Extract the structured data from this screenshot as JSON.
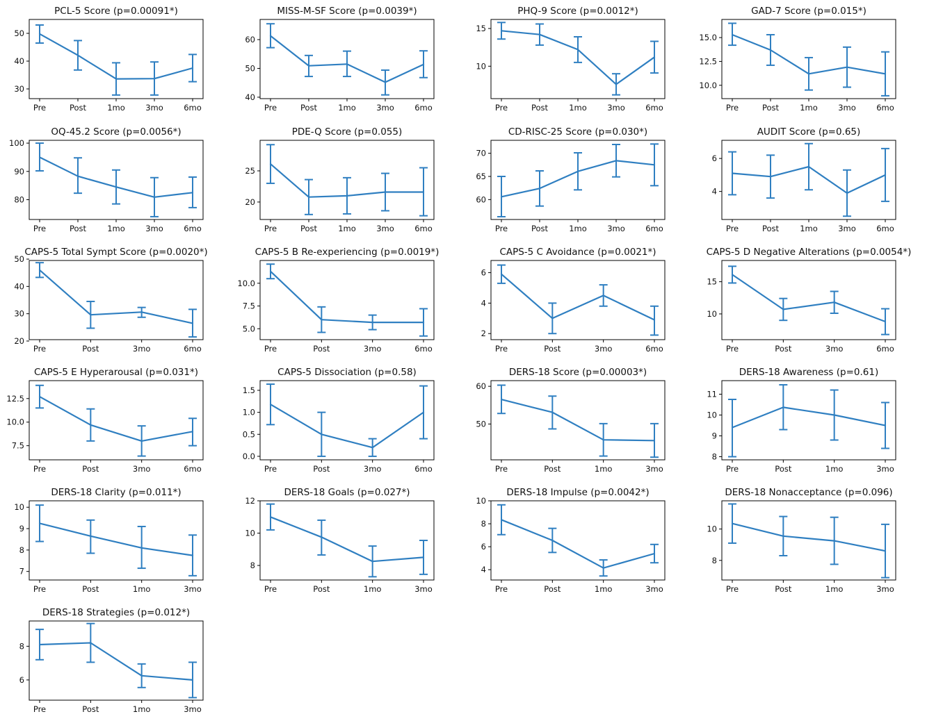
{
  "figure": {
    "line_color": "#2f7fc1",
    "axis_color": "#000000"
  },
  "chart_data": [
    {
      "type": "line",
      "title": "PCL-5 Score (p=0.00091*)",
      "x": [
        "Pre",
        "Post",
        "1mo",
        "3mo",
        "6mo"
      ],
      "series": [
        {
          "values": [
            49.8,
            42.1,
            33.6,
            33.7,
            37.5
          ],
          "err": [
            [
              46.5,
              53.0
            ],
            [
              36.8,
              47.4
            ],
            [
              27.8,
              39.4
            ],
            [
              27.8,
              39.7
            ],
            [
              32.6,
              42.4
            ]
          ]
        }
      ],
      "ylim": [
        26.5,
        55
      ],
      "yticks": [
        30,
        40,
        50
      ],
      "ytick_labels": [
        "30",
        "40",
        "50"
      ],
      "xlabel": "",
      "ylabel": ""
    },
    {
      "type": "line",
      "title": "MISS-M-SF Score (p=0.0039*)",
      "x": [
        "Pre",
        "Post",
        "1mo",
        "3mo",
        "6mo"
      ],
      "series": [
        {
          "values": [
            61.3,
            50.9,
            51.5,
            45.2,
            51.4
          ],
          "err": [
            [
              57.2,
              65.5
            ],
            [
              47.2,
              54.5
            ],
            [
              47.2,
              56.0
            ],
            [
              40.8,
              49.4
            ],
            [
              46.8,
              56.1
            ]
          ]
        }
      ],
      "ylim": [
        39.5,
        67
      ],
      "yticks": [
        40,
        50,
        60
      ],
      "ytick_labels": [
        "40",
        "50",
        "60"
      ],
      "xlabel": "",
      "ylabel": ""
    },
    {
      "type": "line",
      "title": "PHQ-9 Score (p=0.0012*)",
      "x": [
        "Pre",
        "Post",
        "1mo",
        "3mo",
        "6mo"
      ],
      "series": [
        {
          "values": [
            14.7,
            14.2,
            12.2,
            7.6,
            11.2
          ],
          "err": [
            [
              13.6,
              15.8
            ],
            [
              12.8,
              15.6
            ],
            [
              10.5,
              13.9
            ],
            [
              6.2,
              9.0
            ],
            [
              9.1,
              13.3
            ]
          ]
        }
      ],
      "ylim": [
        5.7,
        16.2
      ],
      "yticks": [
        10,
        15
      ],
      "ytick_labels": [
        "10",
        "15"
      ],
      "xlabel": "",
      "ylabel": ""
    },
    {
      "type": "line",
      "title": "GAD-7 Score (p=0.015*)",
      "x": [
        "Pre",
        "Post",
        "1mo",
        "3mo",
        "6mo"
      ],
      "series": [
        {
          "values": [
            15.3,
            13.7,
            11.2,
            11.9,
            11.2
          ],
          "err": [
            [
              14.2,
              16.5
            ],
            [
              12.1,
              15.3
            ],
            [
              9.5,
              12.9
            ],
            [
              9.8,
              14.0
            ],
            [
              8.9,
              13.5
            ]
          ]
        }
      ],
      "ylim": [
        8.6,
        16.9
      ],
      "yticks": [
        10.0,
        12.5,
        15.0
      ],
      "ytick_labels": [
        "10.0",
        "12.5",
        "15.0"
      ],
      "xlabel": "",
      "ylabel": ""
    },
    {
      "type": "line",
      "title": "OQ-45.2 Score (p=0.0056*)",
      "x": [
        "Pre",
        "Post",
        "1mo",
        "3mo",
        "6mo"
      ],
      "series": [
        {
          "values": [
            95.0,
            88.3,
            84.5,
            80.9,
            82.5
          ],
          "err": [
            [
              90.2,
              100.0
            ],
            [
              82.3,
              94.8
            ],
            [
              78.5,
              90.5
            ],
            [
              74.0,
              87.8
            ],
            [
              77.2,
              88.0
            ]
          ]
        }
      ],
      "ylim": [
        73,
        101
      ],
      "yticks": [
        80,
        90,
        100
      ],
      "ytick_labels": [
        "80",
        "90",
        "100"
      ],
      "xlabel": "",
      "ylabel": ""
    },
    {
      "type": "line",
      "title": "PDE-Q Score (p=0.055)",
      "x": [
        "Pre",
        "Post",
        "1mo",
        "3mo",
        "6mo"
      ],
      "series": [
        {
          "values": [
            26.1,
            20.8,
            21.0,
            21.6,
            21.6
          ],
          "err": [
            [
              23.0,
              29.2
            ],
            [
              18.0,
              23.6
            ],
            [
              18.1,
              23.9
            ],
            [
              18.6,
              24.6
            ],
            [
              17.8,
              25.5
            ]
          ]
        }
      ],
      "ylim": [
        17.2,
        29.9
      ],
      "yticks": [
        20,
        25
      ],
      "ytick_labels": [
        "20",
        "25"
      ],
      "xlabel": "",
      "ylabel": ""
    },
    {
      "type": "line",
      "title": "CD-RISC-25 Score (p=0.030*)",
      "x": [
        "Pre",
        "Post",
        "1mo",
        "3mo",
        "6mo"
      ],
      "series": [
        {
          "values": [
            60.6,
            62.4,
            66.1,
            68.4,
            67.5
          ],
          "err": [
            [
              56.3,
              65.0
            ],
            [
              58.6,
              66.2
            ],
            [
              62.1,
              70.1
            ],
            [
              64.9,
              71.9
            ],
            [
              63.0,
              72.0
            ]
          ]
        }
      ],
      "ylim": [
        55.7,
        72.8
      ],
      "yticks": [
        60,
        65,
        70
      ],
      "ytick_labels": [
        "60",
        "65",
        "70"
      ],
      "xlabel": "",
      "ylabel": ""
    },
    {
      "type": "line",
      "title": "AUDIT Score (p=0.65)",
      "x": [
        "Pre",
        "Post",
        "1mo",
        "3mo",
        "6mo"
      ],
      "series": [
        {
          "values": [
            5.1,
            4.9,
            5.5,
            3.9,
            5.0
          ],
          "err": [
            [
              3.8,
              6.4
            ],
            [
              3.6,
              6.2
            ],
            [
              4.1,
              6.9
            ],
            [
              2.5,
              5.3
            ],
            [
              3.4,
              6.6
            ]
          ]
        }
      ],
      "ylim": [
        2.3,
        7.1
      ],
      "yticks": [
        4,
        6
      ],
      "ytick_labels": [
        "4",
        "6"
      ],
      "xlabel": "",
      "ylabel": ""
    },
    {
      "type": "line",
      "title": "CAPS-5 Total Sympt Score (p=0.0020*)",
      "x": [
        "Pre",
        "Post",
        "3mo",
        "6mo"
      ],
      "series": [
        {
          "values": [
            46.0,
            29.6,
            30.6,
            26.5
          ],
          "err": [
            [
              43.3,
              48.7
            ],
            [
              24.7,
              34.5
            ],
            [
              28.7,
              32.3
            ],
            [
              21.5,
              31.6
            ]
          ]
        }
      ],
      "ylim": [
        20.5,
        49.5
      ],
      "yticks": [
        20,
        30,
        40,
        50
      ],
      "ytick_labels": [
        "20",
        "30",
        "40",
        "50"
      ],
      "xlabel": "",
      "ylabel": ""
    },
    {
      "type": "line",
      "title": "CAPS-5 B Re-experiencing (p=0.0019*)",
      "x": [
        "Pre",
        "Post",
        "3mo",
        "6mo"
      ],
      "series": [
        {
          "values": [
            11.3,
            6.0,
            5.7,
            5.7
          ],
          "err": [
            [
              10.5,
              12.1
            ],
            [
              4.6,
              7.4
            ],
            [
              4.9,
              6.5
            ],
            [
              4.2,
              7.2
            ]
          ]
        }
      ],
      "ylim": [
        3.8,
        12.5
      ],
      "yticks": [
        5.0,
        7.5,
        10.0
      ],
      "ytick_labels": [
        "5.0",
        "7.5",
        "10.0"
      ],
      "xlabel": "",
      "ylabel": ""
    },
    {
      "type": "line",
      "title": "CAPS-5 C Avoidance (p=0.0021*)",
      "x": [
        "Pre",
        "Post",
        "3mo",
        "6mo"
      ],
      "series": [
        {
          "values": [
            5.9,
            3.0,
            4.5,
            2.9
          ],
          "err": [
            [
              5.3,
              6.5
            ],
            [
              2.0,
              4.0
            ],
            [
              3.8,
              5.2
            ],
            [
              1.9,
              3.8
            ]
          ]
        }
      ],
      "ylim": [
        1.6,
        6.8
      ],
      "yticks": [
        2,
        4,
        6
      ],
      "ytick_labels": [
        "2",
        "4",
        "6"
      ],
      "xlabel": "",
      "ylabel": ""
    },
    {
      "type": "line",
      "title": "CAPS-5 D Negative Alterations (p=0.0054*)",
      "x": [
        "Pre",
        "Post",
        "3mo",
        "6mo"
      ],
      "series": [
        {
          "values": [
            16.1,
            10.7,
            11.8,
            8.8
          ],
          "err": [
            [
              14.8,
              17.4
            ],
            [
              9.0,
              12.4
            ],
            [
              10.1,
              13.5
            ],
            [
              6.8,
              10.8
            ]
          ]
        }
      ],
      "ylim": [
        6.0,
        18.3
      ],
      "yticks": [
        10,
        15
      ],
      "ytick_labels": [
        "10",
        "15"
      ],
      "xlabel": "",
      "ylabel": ""
    },
    {
      "type": "line",
      "title": "CAPS-5 E Hyperarousal (p=0.031*)",
      "x": [
        "Pre",
        "Post",
        "3mo",
        "6mo"
      ],
      "series": [
        {
          "values": [
            12.7,
            9.7,
            8.0,
            9.0
          ],
          "err": [
            [
              11.5,
              13.9
            ],
            [
              8.0,
              11.4
            ],
            [
              6.4,
              9.6
            ],
            [
              7.5,
              10.4
            ]
          ]
        }
      ],
      "ylim": [
        6.0,
        14.4
      ],
      "yticks": [
        7.5,
        10.0,
        12.5
      ],
      "ytick_labels": [
        "7.5",
        "10.0",
        "12.5"
      ],
      "xlabel": "",
      "ylabel": ""
    },
    {
      "type": "line",
      "title": "CAPS-5 Dissociation (p=0.58)",
      "x": [
        "Pre",
        "Post",
        "3mo",
        "6mo"
      ],
      "series": [
        {
          "values": [
            1.18,
            0.5,
            0.2,
            1.0
          ],
          "err": [
            [
              0.72,
              1.64
            ],
            [
              0.0,
              1.0
            ],
            [
              0.0,
              0.4
            ],
            [
              0.4,
              1.6
            ]
          ]
        }
      ],
      "ylim": [
        -0.08,
        1.72
      ],
      "yticks": [
        0.0,
        0.5,
        1.0,
        1.5
      ],
      "ytick_labels": [
        "0.0",
        "0.5",
        "1.0",
        "1.5"
      ],
      "xlabel": "",
      "ylabel": ""
    },
    {
      "type": "line",
      "title": "DERS-18 Score (p=0.00003*)",
      "x": [
        "Pre",
        "Post",
        "1mo",
        "3mo"
      ],
      "series": [
        {
          "values": [
            56.5,
            53.1,
            45.8,
            45.6
          ],
          "err": [
            [
              52.8,
              60.3
            ],
            [
              48.7,
              57.4
            ],
            [
              41.5,
              50.1
            ],
            [
              41.2,
              50.1
            ]
          ]
        }
      ],
      "ylim": [
        40.5,
        61.5
      ],
      "yticks": [
        50,
        60
      ],
      "ytick_labels": [
        "50",
        "60"
      ],
      "xlabel": "",
      "ylabel": ""
    },
    {
      "type": "line",
      "title": "DERS-18 Awareness (p=0.61)",
      "x": [
        "Pre",
        "Post",
        "1mo",
        "3mo"
      ],
      "series": [
        {
          "values": [
            9.4,
            10.37,
            10.0,
            9.5
          ],
          "err": [
            [
              8.0,
              10.75
            ],
            [
              9.3,
              11.45
            ],
            [
              8.8,
              11.2
            ],
            [
              8.4,
              10.6
            ]
          ]
        }
      ],
      "ylim": [
        7.85,
        11.65
      ],
      "yticks": [
        8,
        9,
        10,
        11
      ],
      "ytick_labels": [
        "8",
        "9",
        "10",
        "11"
      ],
      "xlabel": "",
      "ylabel": ""
    },
    {
      "type": "line",
      "title": "DERS-18 Clarity (p=0.011*)",
      "x": [
        "Pre",
        "Post",
        "1mo",
        "3mo"
      ],
      "series": [
        {
          "values": [
            9.25,
            8.65,
            8.1,
            7.75
          ],
          "err": [
            [
              8.4,
              10.1
            ],
            [
              7.85,
              9.4
            ],
            [
              7.15,
              9.1
            ],
            [
              6.8,
              8.7
            ]
          ]
        }
      ],
      "ylim": [
        6.6,
        10.3
      ],
      "yticks": [
        7,
        8,
        9,
        10
      ],
      "ytick_labels": [
        "7",
        "8",
        "9",
        "10"
      ],
      "xlabel": "",
      "ylabel": ""
    },
    {
      "type": "line",
      "title": "DERS-18 Goals (p=0.027*)",
      "x": [
        "Pre",
        "Post",
        "1mo",
        "3mo"
      ],
      "series": [
        {
          "values": [
            11.0,
            9.75,
            8.25,
            8.5
          ],
          "err": [
            [
              10.2,
              11.8
            ],
            [
              8.65,
              10.8
            ],
            [
              7.3,
              9.2
            ],
            [
              7.45,
              9.55
            ]
          ]
        }
      ],
      "ylim": [
        7.1,
        12.0
      ],
      "yticks": [
        8,
        10,
        12
      ],
      "ytick_labels": [
        "8",
        "10",
        "12"
      ],
      "xlabel": "",
      "ylabel": ""
    },
    {
      "type": "line",
      "title": "DERS-18 Impulse (p=0.0042*)",
      "x": [
        "Pre",
        "Post",
        "1mo",
        "3mo"
      ],
      "series": [
        {
          "values": [
            8.35,
            6.55,
            4.15,
            5.4
          ],
          "err": [
            [
              7.05,
              9.65
            ],
            [
              5.5,
              7.6
            ],
            [
              3.45,
              4.85
            ],
            [
              4.6,
              6.2
            ]
          ]
        }
      ],
      "ylim": [
        3.1,
        10.0
      ],
      "yticks": [
        4,
        6,
        8,
        10
      ],
      "ytick_labels": [
        "4",
        "6",
        "8",
        "10"
      ],
      "xlabel": "",
      "ylabel": ""
    },
    {
      "type": "line",
      "title": "DERS-18 Nonacceptance (p=0.096)",
      "x": [
        "Pre",
        "Post",
        "1mo",
        "3mo"
      ],
      "series": [
        {
          "values": [
            10.35,
            9.55,
            9.25,
            8.6
          ],
          "err": [
            [
              9.1,
              11.6
            ],
            [
              8.3,
              10.8
            ],
            [
              7.75,
              10.75
            ],
            [
              6.9,
              10.3
            ]
          ]
        }
      ],
      "ylim": [
        6.75,
        11.8
      ],
      "yticks": [
        8,
        10
      ],
      "ytick_labels": [
        "8",
        "10"
      ],
      "xlabel": "",
      "ylabel": ""
    },
    {
      "type": "line",
      "title": "DERS-18 Strategies (p=0.012*)",
      "x": [
        "Pre",
        "Post",
        "1mo",
        "3mo"
      ],
      "series": [
        {
          "values": [
            8.1,
            8.2,
            6.25,
            6.0
          ],
          "err": [
            [
              7.2,
              9.0
            ],
            [
              7.05,
              9.35
            ],
            [
              5.55,
              6.95
            ],
            [
              4.95,
              7.05
            ]
          ]
        }
      ],
      "ylim": [
        4.8,
        9.5
      ],
      "yticks": [
        6,
        8
      ],
      "ytick_labels": [
        "6",
        "8"
      ],
      "xlabel": "",
      "ylabel": ""
    }
  ]
}
